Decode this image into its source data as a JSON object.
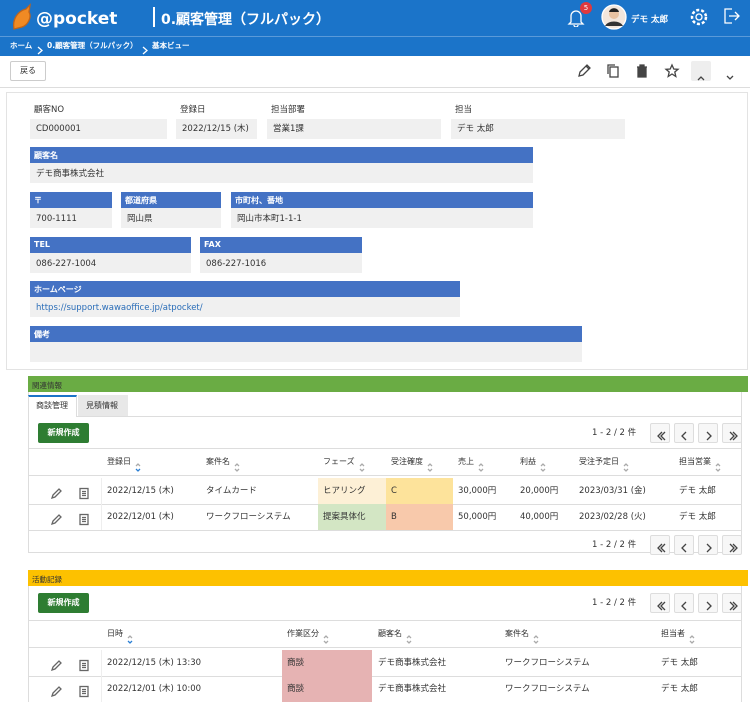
{
  "header": {
    "logo": "@pocket",
    "title": "0.顧客管理（フルパック）",
    "notifications": 5,
    "user": "デモ 太郎"
  },
  "breadcrumb": [
    "ホーム",
    "0.顧客管理（フルパック）",
    "基本ビュー"
  ],
  "toolbar": {
    "back": "戻る"
  },
  "form": {
    "fields": [
      {
        "label": "顧客NO",
        "value": "CD000001"
      },
      {
        "label": "登録日",
        "value": "2022/12/15 (木)"
      },
      {
        "label": "担当部署",
        "value": "営業1課"
      },
      {
        "label": "担当",
        "value": "デモ 太郎"
      },
      {
        "label": "顧客名",
        "value": "デモ商事株式会社"
      },
      {
        "label": "〒",
        "value": "700-1111"
      },
      {
        "label": "都道府県",
        "value": "岡山県"
      },
      {
        "label": "市町村、番地",
        "value": "岡山市本町1-1-1"
      },
      {
        "label": "TEL",
        "value": "086-227-1004"
      },
      {
        "label": "FAX",
        "value": "086-227-1016"
      },
      {
        "label": "ホームページ",
        "value": "https://support.wawaoffice.jp/atpocket/"
      },
      {
        "label": "備考"
      }
    ]
  },
  "related": {
    "title": "関連情報",
    "tabs": [
      "商談管理",
      "見積情報"
    ],
    "new_button": "新規作成",
    "pager": "1 - 2 / 2 件",
    "columns": [
      "登録日",
      "案件名",
      "フェーズ",
      "受注確度",
      "売上",
      "利益",
      "受注予定日",
      "担当営業"
    ],
    "rows": [
      [
        "2022/12/15 (木)",
        "タイムカード",
        "ヒアリング",
        "C",
        "30,000円",
        "20,000円",
        "2023/03/31 (金)",
        "デモ 太郎"
      ],
      [
        "2022/12/01 (木)",
        "ワークフローシステム",
        "提案具体化",
        "B",
        "50,000円",
        "40,000円",
        "2023/02/28 (火)",
        "デモ 太郎"
      ]
    ]
  },
  "activity": {
    "title": "活動記録",
    "new_button": "新規作成",
    "pager": "1 - 2 / 2 件",
    "columns": [
      "日時",
      "作業区分",
      "顧客名",
      "案件名",
      "担当者"
    ],
    "rows": [
      [
        "2022/12/15 (木) 13:30",
        "商談",
        "デモ商事株式会社",
        "ワークフローシステム",
        "デモ 太郎"
      ],
      [
        "2022/12/01 (木) 10:00",
        "商談",
        "デモ商事株式会社",
        "ワークフローシステム",
        "デモ 太郎"
      ]
    ]
  }
}
